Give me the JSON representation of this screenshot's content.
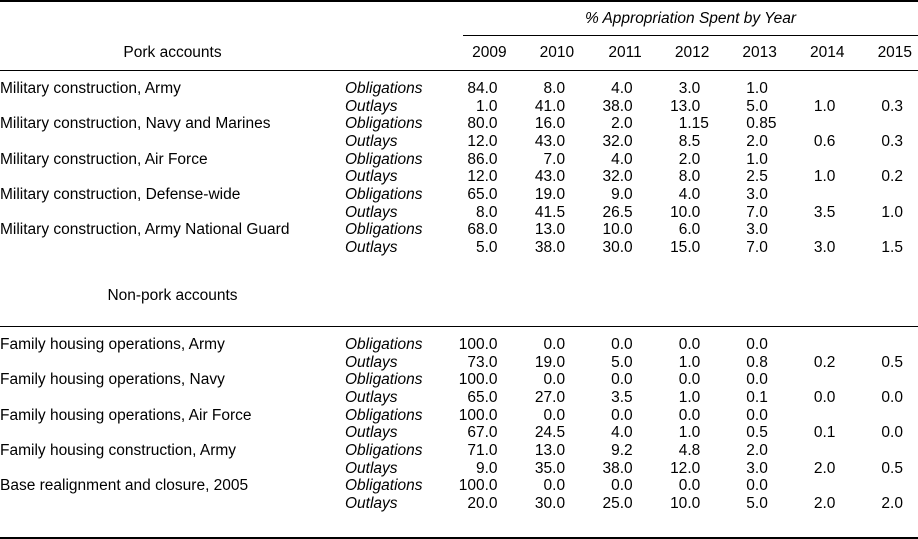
{
  "chart_data": {
    "type": "table",
    "title": "% Appropriation Spent by Year",
    "columns": [
      "2009",
      "2010",
      "2011",
      "2012",
      "2013",
      "2014",
      "2015"
    ],
    "measures": {
      "obligations": "Obligations",
      "outlays": "Outlays"
    },
    "sections": [
      {
        "header": "Pork accounts",
        "accounts": [
          {
            "name": "Military construction, Army",
            "obligations": [
              "84.0",
              "8.0",
              "4.0",
              "3.0",
              "1.0",
              "",
              ""
            ],
            "outlays": [
              "1.0",
              "41.0",
              "38.0",
              "13.0",
              "5.0",
              "1.0",
              "0.3"
            ]
          },
          {
            "name": "Military construction, Navy and Marines",
            "obligations": [
              "80.0",
              "16.0",
              "2.0",
              "1.15",
              "0.85",
              "",
              ""
            ],
            "outlays": [
              "12.0",
              "43.0",
              "32.0",
              "8.5",
              "2.0",
              "0.6",
              "0.3"
            ]
          },
          {
            "name": "Military construction, Air Force",
            "obligations": [
              "86.0",
              "7.0",
              "4.0",
              "2.0",
              "1.0",
              "",
              ""
            ],
            "outlays": [
              "12.0",
              "43.0",
              "32.0",
              "8.0",
              "2.5",
              "1.0",
              "0.2"
            ]
          },
          {
            "name": "Military construction, Defense-wide",
            "obligations": [
              "65.0",
              "19.0",
              "9.0",
              "4.0",
              "3.0",
              "",
              ""
            ],
            "outlays": [
              "8.0",
              "41.5",
              "26.5",
              "10.0",
              "7.0",
              "3.5",
              "1.0"
            ]
          },
          {
            "name": "Military construction, Army National Guard",
            "obligations": [
              "68.0",
              "13.0",
              "10.0",
              "6.0",
              "3.0",
              "",
              ""
            ],
            "outlays": [
              "5.0",
              "38.0",
              "30.0",
              "15.0",
              "7.0",
              "3.0",
              "1.5"
            ]
          }
        ]
      },
      {
        "header": "Non-pork accounts",
        "accounts": [
          {
            "name": "Family housing operations, Army",
            "obligations": [
              "100.0",
              "0.0",
              "0.0",
              "0.0",
              "0.0",
              "",
              ""
            ],
            "outlays": [
              "73.0",
              "19.0",
              "5.0",
              "1.0",
              "0.8",
              "0.2",
              "0.5"
            ]
          },
          {
            "name": "Family housing operations, Navy",
            "obligations": [
              "100.0",
              "0.0",
              "0.0",
              "0.0",
              "0.0",
              "",
              ""
            ],
            "outlays": [
              "65.0",
              "27.0",
              "3.5",
              "1.0",
              "0.1",
              "0.0",
              "0.0"
            ]
          },
          {
            "name": "Family housing operations, Air Force",
            "obligations": [
              "100.0",
              "0.0",
              "0.0",
              "0.0",
              "0.0",
              "",
              ""
            ],
            "outlays": [
              "67.0",
              "24.5",
              "4.0",
              "1.0",
              "0.5",
              "0.1",
              "0.0"
            ]
          },
          {
            "name": "Family housing construction, Army",
            "obligations": [
              "71.0",
              "13.0",
              "9.2",
              "4.8",
              "2.0",
              "",
              ""
            ],
            "outlays": [
              "9.0",
              "35.0",
              "38.0",
              "12.0",
              "3.0",
              "2.0",
              "0.5"
            ]
          },
          {
            "name": "Base realignment and closure, 2005",
            "obligations": [
              "100.0",
              "0.0",
              "0.0",
              "0.0",
              "0.0",
              "",
              ""
            ],
            "outlays": [
              "20.0",
              "30.0",
              "25.0",
              "10.0",
              "5.0",
              "2.0",
              "2.0"
            ]
          }
        ]
      }
    ],
    "layout": {
      "grid": "off",
      "legend": "none"
    },
    "colors": {
      "text": "#000000",
      "rule": "#000000",
      "background": "#ffffff"
    }
  }
}
